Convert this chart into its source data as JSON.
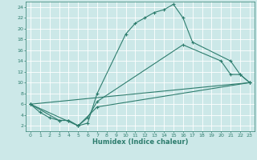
{
  "xlabel": "Humidex (Indice chaleur)",
  "bg_color": "#cce8e8",
  "grid_color": "#ffffff",
  "line_color": "#2e7d6e",
  "xlim": [
    -0.5,
    23.5
  ],
  "ylim": [
    1,
    25
  ],
  "xticks": [
    0,
    1,
    2,
    3,
    4,
    5,
    6,
    7,
    8,
    9,
    10,
    11,
    12,
    13,
    14,
    15,
    16,
    17,
    18,
    19,
    20,
    21,
    22,
    23
  ],
  "yticks": [
    2,
    4,
    6,
    8,
    10,
    12,
    14,
    16,
    18,
    20,
    22,
    24
  ],
  "line1_x": [
    0,
    1,
    2,
    3,
    4,
    5,
    6,
    7,
    10,
    11,
    12,
    13,
    14,
    15,
    16,
    17,
    21,
    22,
    23
  ],
  "line1_y": [
    6,
    4.5,
    3.5,
    3,
    3,
    2,
    2.5,
    8,
    19,
    21,
    22,
    23,
    23.5,
    24.5,
    22,
    17.5,
    14,
    11.5,
    10
  ],
  "line2_x": [
    0,
    3,
    4,
    5,
    6,
    7,
    16,
    20,
    21,
    22,
    23
  ],
  "line2_y": [
    6,
    3,
    3,
    2,
    3.5,
    6.5,
    17,
    14,
    11.5,
    11.5,
    10
  ],
  "line3_x": [
    0,
    5,
    7,
    23
  ],
  "line3_y": [
    6,
    2,
    5.5,
    10
  ],
  "line4_x": [
    0,
    23
  ],
  "line4_y": [
    6,
    10
  ]
}
